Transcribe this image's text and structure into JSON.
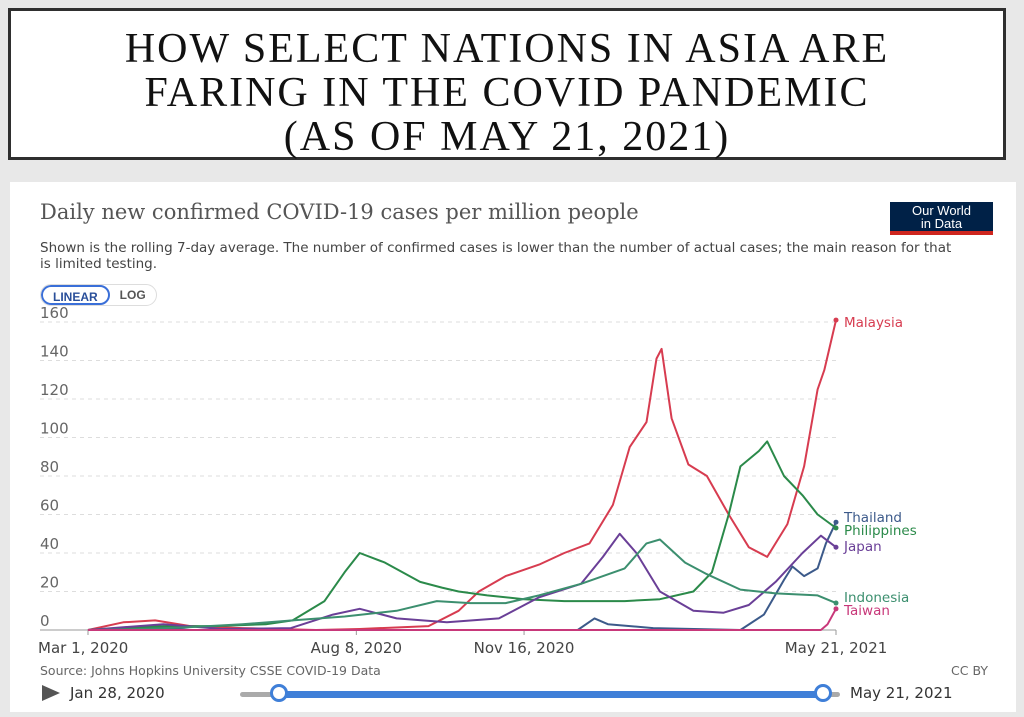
{
  "header": {
    "line1": "HOW SELECT NATIONS IN ASIA ARE",
    "line2": "FARING IN THE COVID PANDEMIC",
    "line3": "(AS OF MAY 21, 2021)"
  },
  "chart_header": {
    "title": "Daily new confirmed COVID-19 cases per million people",
    "subtitle": "Shown is the rolling 7-day average. The number of confirmed cases is lower than the number of actual cases; the main reason for that is limited testing.",
    "logo_line1": "Our World",
    "logo_line2": "in Data"
  },
  "scale_toggle": {
    "linear": "LINEAR",
    "log": "LOG"
  },
  "footer": {
    "source": "Source: Johns Hopkins University CSSE COVID-19 Data",
    "license": "CC BY"
  },
  "timeline": {
    "start": "Jan 28, 2020",
    "end": "May 21, 2021"
  },
  "chart_data": {
    "type": "line",
    "grid": true,
    "legend": "right labels",
    "ylim": [
      0,
      160
    ],
    "yticks": [
      0,
      20,
      40,
      60,
      80,
      100,
      120,
      140,
      160
    ],
    "xrange": [
      "2020-03-01",
      "2021-05-21"
    ],
    "xticks": [
      {
        "date": "2020-03-01",
        "label": "Mar 1, 2020"
      },
      {
        "date": "2020-08-08",
        "label": "Aug 8, 2020"
      },
      {
        "date": "2020-11-16",
        "label": "Nov 16, 2020"
      },
      {
        "date": "2021-05-21",
        "label": "May 21, 2021"
      }
    ],
    "series": [
      {
        "name": "Malaysia",
        "color": "#d73c50",
        "points": [
          [
            "2020-03-01",
            0
          ],
          [
            "2020-03-22",
            4
          ],
          [
            "2020-04-10",
            5
          ],
          [
            "2020-05-01",
            2
          ],
          [
            "2020-06-01",
            1
          ],
          [
            "2020-07-15",
            0
          ],
          [
            "2020-08-10",
            0.5
          ],
          [
            "2020-09-20",
            2
          ],
          [
            "2020-10-08",
            10
          ],
          [
            "2020-10-20",
            20
          ],
          [
            "2020-11-05",
            28
          ],
          [
            "2020-11-25",
            34
          ],
          [
            "2020-12-10",
            40
          ],
          [
            "2020-12-25",
            45
          ],
          [
            "2021-01-08",
            65
          ],
          [
            "2021-01-18",
            95
          ],
          [
            "2021-01-28",
            108
          ],
          [
            "2021-02-03",
            141
          ],
          [
            "2021-02-06",
            146
          ],
          [
            "2021-02-12",
            110
          ],
          [
            "2021-02-22",
            86
          ],
          [
            "2021-03-05",
            80
          ],
          [
            "2021-03-18",
            60
          ],
          [
            "2021-03-30",
            43
          ],
          [
            "2021-04-10",
            38
          ],
          [
            "2021-04-22",
            55
          ],
          [
            "2021-05-02",
            85
          ],
          [
            "2021-05-10",
            125
          ],
          [
            "2021-05-14",
            135
          ],
          [
            "2021-05-21",
            161
          ]
        ]
      },
      {
        "name": "Thailand",
        "color": "#3c5a8a",
        "points": [
          [
            "2020-03-01",
            0
          ],
          [
            "2020-03-25",
            1
          ],
          [
            "2020-04-10",
            1.5
          ],
          [
            "2020-05-01",
            0
          ],
          [
            "2020-12-18",
            0
          ],
          [
            "2020-12-28",
            6
          ],
          [
            "2021-01-05",
            3
          ],
          [
            "2021-02-01",
            1
          ],
          [
            "2021-03-25",
            0
          ],
          [
            "2021-04-08",
            8
          ],
          [
            "2021-04-20",
            26
          ],
          [
            "2021-04-25",
            33
          ],
          [
            "2021-05-02",
            28
          ],
          [
            "2021-05-10",
            32
          ],
          [
            "2021-05-15",
            45
          ],
          [
            "2021-05-21",
            56
          ]
        ]
      },
      {
        "name": "Philippines",
        "color": "#2b8a4a",
        "points": [
          [
            "2020-03-01",
            0
          ],
          [
            "2020-03-20",
            1
          ],
          [
            "2020-04-15",
            2
          ],
          [
            "2020-05-15",
            2
          ],
          [
            "2020-06-15",
            3
          ],
          [
            "2020-07-01",
            5
          ],
          [
            "2020-07-20",
            15
          ],
          [
            "2020-08-01",
            30
          ],
          [
            "2020-08-10",
            40
          ],
          [
            "2020-08-25",
            35
          ],
          [
            "2020-09-15",
            25
          ],
          [
            "2020-09-28",
            22
          ],
          [
            "2020-10-08",
            20
          ],
          [
            "2020-10-25",
            18
          ],
          [
            "2020-11-16",
            16
          ],
          [
            "2020-12-10",
            15
          ],
          [
            "2021-01-15",
            15
          ],
          [
            "2021-02-05",
            16
          ],
          [
            "2021-02-25",
            20
          ],
          [
            "2021-03-08",
            30
          ],
          [
            "2021-03-18",
            60
          ],
          [
            "2021-03-25",
            85
          ],
          [
            "2021-04-05",
            93
          ],
          [
            "2021-04-10",
            98
          ],
          [
            "2021-04-20",
            80
          ],
          [
            "2021-05-01",
            70
          ],
          [
            "2021-05-10",
            60
          ],
          [
            "2021-05-21",
            53
          ]
        ]
      },
      {
        "name": "Japan",
        "color": "#6a3f97",
        "points": [
          [
            "2020-03-01",
            0
          ],
          [
            "2020-04-15",
            3
          ],
          [
            "2020-05-20",
            0.5
          ],
          [
            "2020-06-30",
            1
          ],
          [
            "2020-07-25",
            8
          ],
          [
            "2020-08-10",
            11
          ],
          [
            "2020-09-01",
            6
          ],
          [
            "2020-10-01",
            4
          ],
          [
            "2020-11-01",
            6
          ],
          [
            "2020-11-25",
            17
          ],
          [
            "2020-12-20",
            24
          ],
          [
            "2021-01-02",
            38
          ],
          [
            "2021-01-12",
            50
          ],
          [
            "2021-01-22",
            40
          ],
          [
            "2021-02-05",
            20
          ],
          [
            "2021-02-25",
            10
          ],
          [
            "2021-03-15",
            9
          ],
          [
            "2021-03-30",
            13
          ],
          [
            "2021-04-15",
            25
          ],
          [
            "2021-05-01",
            40
          ],
          [
            "2021-05-12",
            49
          ],
          [
            "2021-05-21",
            43
          ]
        ]
      },
      {
        "name": "Indonesia",
        "color": "#3c8f6f",
        "points": [
          [
            "2020-03-01",
            0
          ],
          [
            "2020-04-01",
            0.5
          ],
          [
            "2020-05-01",
            1.5
          ],
          [
            "2020-06-01",
            3
          ],
          [
            "2020-07-01",
            5
          ],
          [
            "2020-08-01",
            7
          ],
          [
            "2020-09-01",
            10
          ],
          [
            "2020-09-25",
            15
          ],
          [
            "2020-10-15",
            14
          ],
          [
            "2020-11-05",
            14
          ],
          [
            "2020-11-25",
            18
          ],
          [
            "2020-12-20",
            24
          ],
          [
            "2021-01-15",
            32
          ],
          [
            "2021-01-28",
            45
          ],
          [
            "2021-02-05",
            47
          ],
          [
            "2021-02-20",
            35
          ],
          [
            "2021-03-05",
            29
          ],
          [
            "2021-03-25",
            21
          ],
          [
            "2021-04-15",
            19
          ],
          [
            "2021-05-10",
            18
          ],
          [
            "2021-05-21",
            14
          ]
        ]
      },
      {
        "name": "Taiwan",
        "color": "#c8387a",
        "points": [
          [
            "2020-03-01",
            0
          ],
          [
            "2021-05-12",
            0
          ],
          [
            "2021-05-16",
            3
          ],
          [
            "2021-05-21",
            11
          ]
        ]
      }
    ]
  }
}
